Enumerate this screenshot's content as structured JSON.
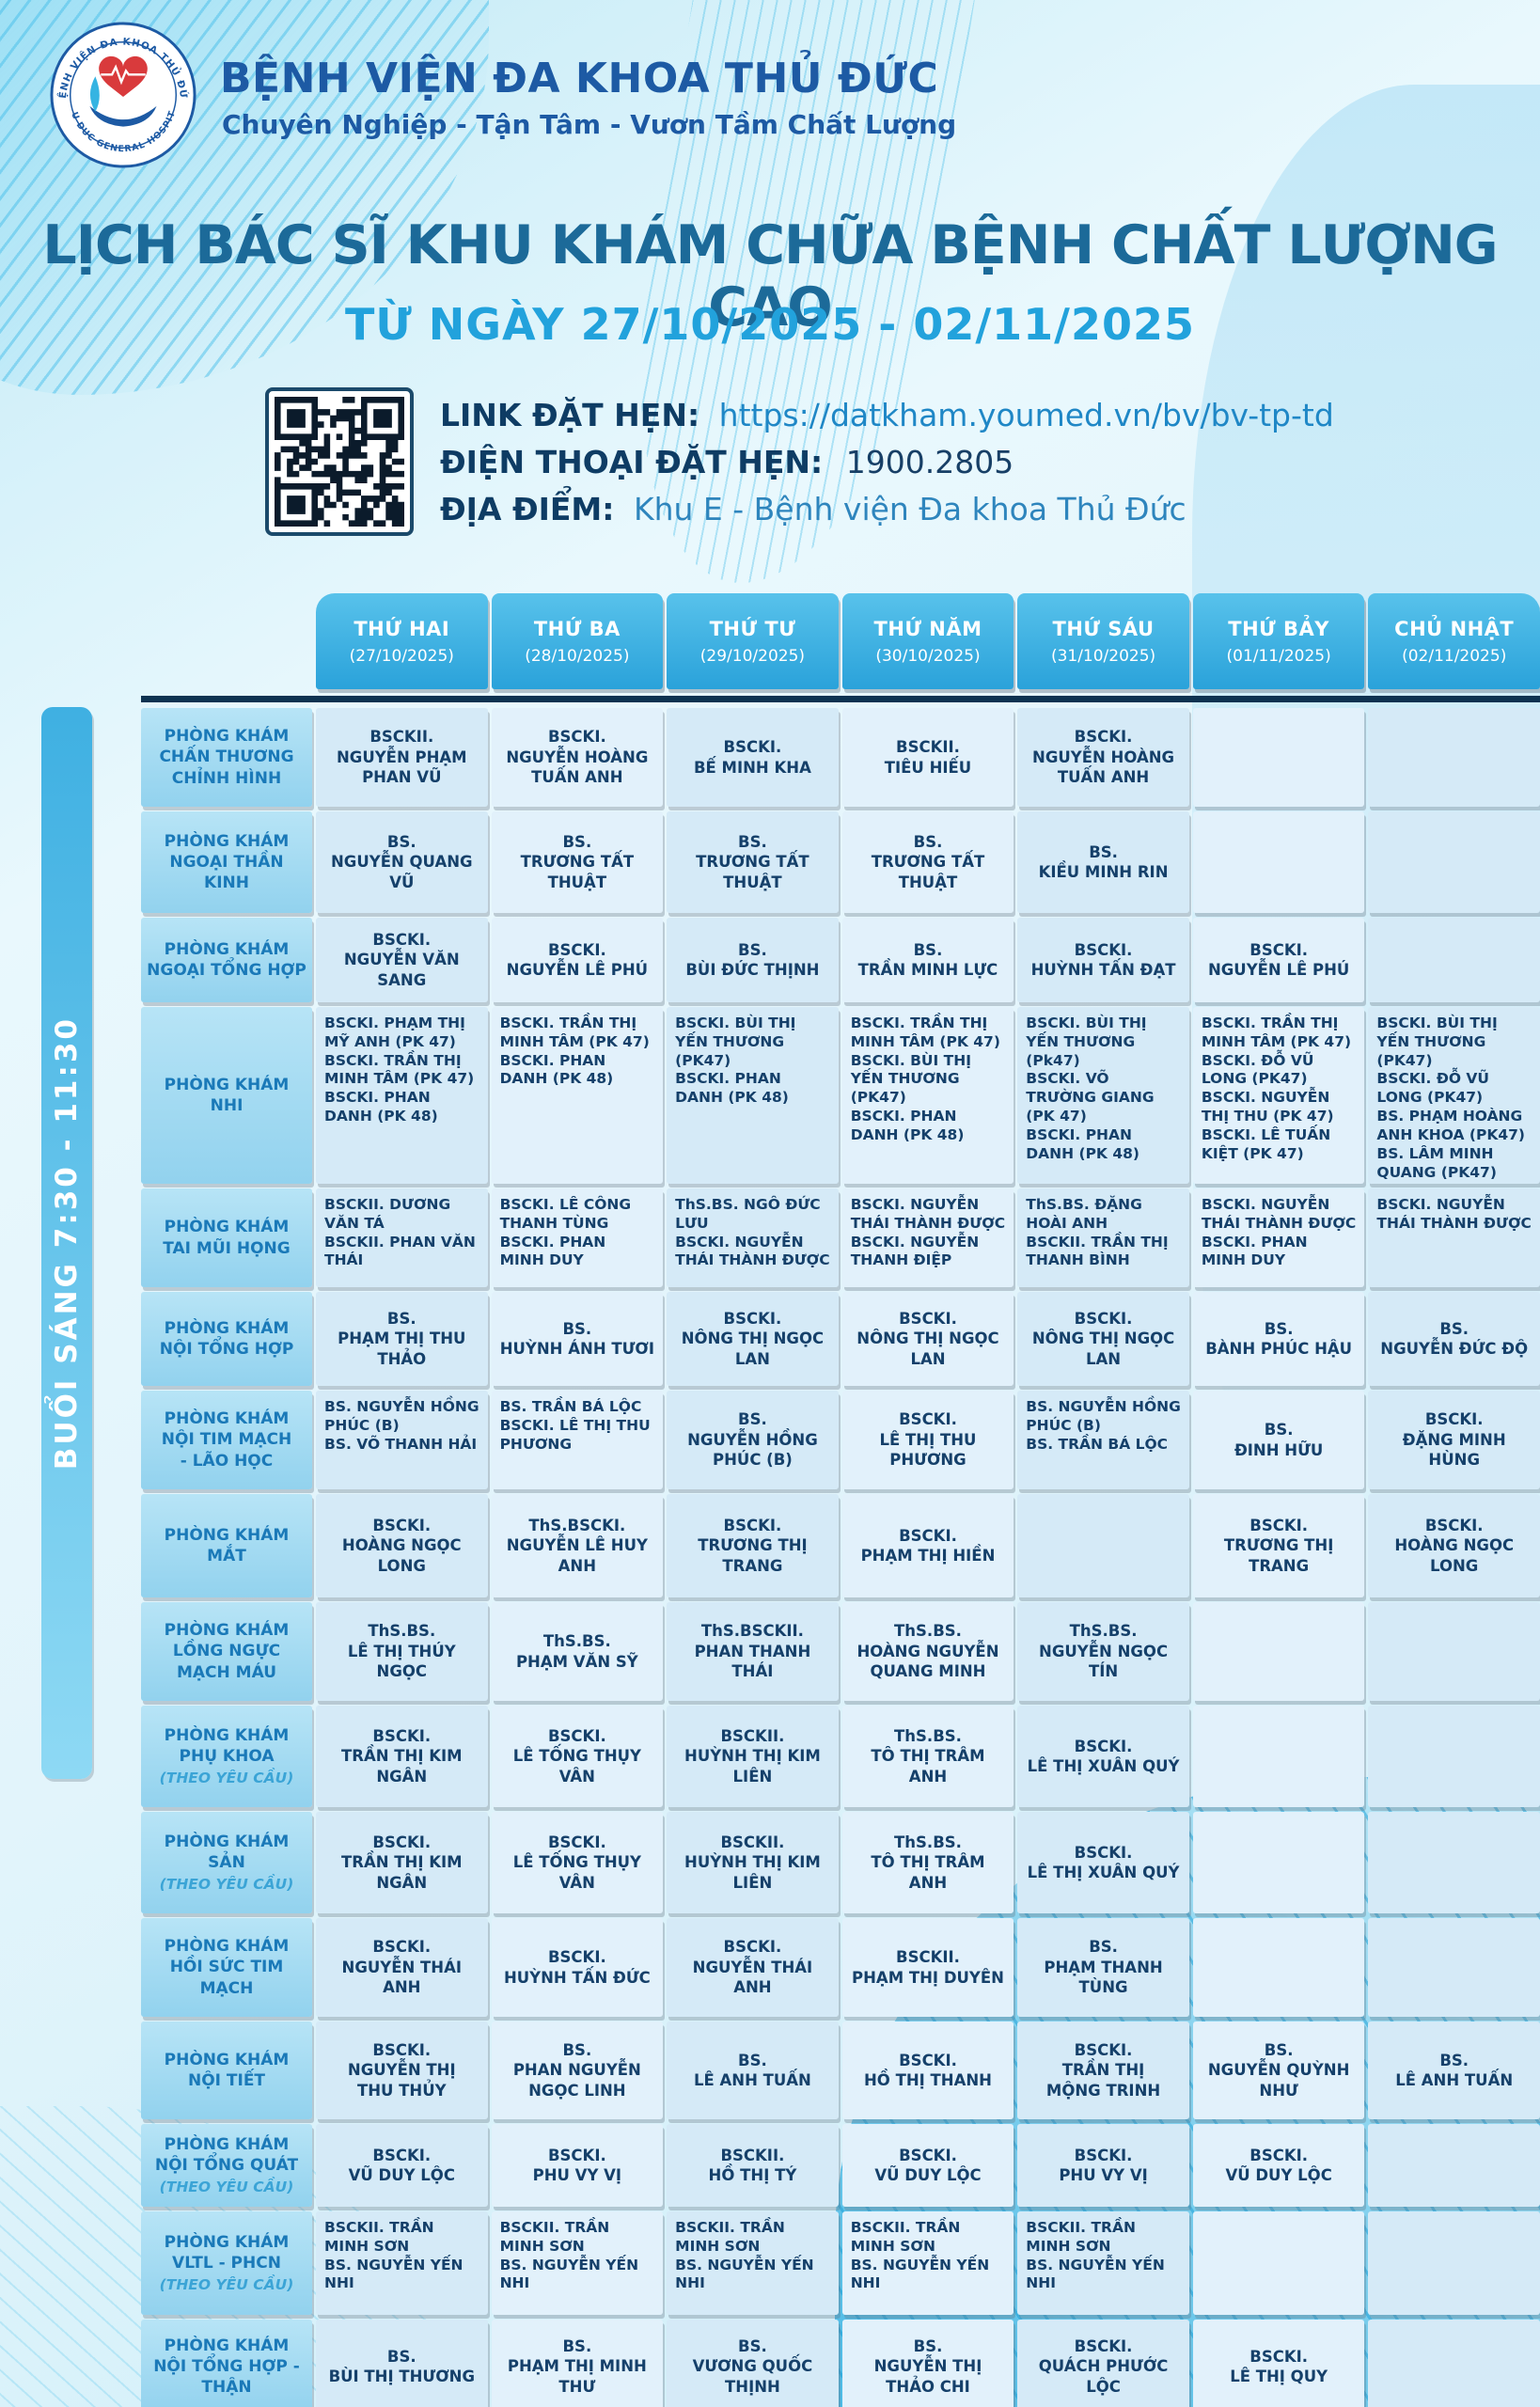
{
  "colors": {
    "navy": "#0d3351",
    "navy_text": "#0e3c64",
    "brand_blue": "#1d5aa4",
    "title_blue": "#1c6a99",
    "accent_cyan": "#22a2dc",
    "room_text": "#1a79b8",
    "cell_text": "#15406a"
  },
  "header": {
    "hospital_name": "BỆNH VIỆN ĐA KHOA THỦ ĐỨC",
    "tagline": "Chuyên Nghiệp - Tận Tâm - Vươn Tầm Chất Lượng",
    "logo_text_top": "BỆNH VIỆN ĐA KHOA THỦ ĐỨC",
    "logo_text_bottom": "THU DUC GENERAL HOSPITAL"
  },
  "title": {
    "line1": "LỊCH BÁC SĨ KHU KHÁM CHỮA BỆNH CHẤT LƯỢNG CAO",
    "line2": "TỪ NGÀY 27/10/2025 - 02/11/2025"
  },
  "booking": {
    "link_label": "LINK ĐẶT HẸN:",
    "link_value": "https://datkham.youmed.vn/bv/bv-tp-td",
    "phone_label": "ĐIỆN THOẠI ĐẶT HẸN:",
    "phone_value": "1900.2805",
    "address_label": "ĐỊA ĐIỂM:",
    "address_value": "Khu E - Bệnh viện Đa khoa Thủ Đức"
  },
  "session_label": "BUỔI SÁNG 7:30 - 11:30",
  "days": [
    {
      "name": "THỨ HAI",
      "date": "(27/10/2025)"
    },
    {
      "name": "THỨ BA",
      "date": "(28/10/2025)"
    },
    {
      "name": "THỨ TƯ",
      "date": "(29/10/2025)"
    },
    {
      "name": "THỨ NĂM",
      "date": "(30/10/2025)"
    },
    {
      "name": "THỨ SÁU",
      "date": "(31/10/2025)"
    },
    {
      "name": "THỨ BẢY",
      "date": "(01/11/2025)"
    },
    {
      "name": "CHỦ NHẬT",
      "date": "(02/11/2025)"
    }
  ],
  "rows": [
    {
      "room": "PHÒNG KHÁM\nCHẤN THƯƠNG\nCHỈNH HÌNH",
      "h": 105,
      "align": "center",
      "cells": [
        "BSCKII.\nNGUYỄN PHẠM\nPHAN VŨ",
        "BSCKI.\nNGUYỄN HOÀNG\nTUẤN ANH",
        "BSCKI.\nBẾ MINH KHA",
        "BSCKII.\nTIÊU HIẾU",
        "BSCKI.\nNGUYỄN HOÀNG\nTUẤN ANH",
        "",
        ""
      ]
    },
    {
      "room": "PHÒNG KHÁM\nNGOẠI THẦN KINH",
      "h": 108,
      "align": "center",
      "cells": [
        "BS.\nNGUYỄN QUANG VŨ",
        "BS.\nTRƯƠNG TẤT THUẬT",
        "BS.\nTRƯƠNG TẤT THUẬT",
        "BS.\nTRƯƠNG TẤT THUẬT",
        "BS.\nKIỀU MINH RIN",
        "",
        ""
      ]
    },
    {
      "room": "PHÒNG KHÁM\nNGOẠI TỔNG HỢP",
      "h": 90,
      "align": "center",
      "cells": [
        "BSCKI.\nNGUYỄN VĂN SANG",
        "BSCKI.\nNGUYỄN LÊ PHÚ",
        "BS.\nBÙI ĐỨC THỊNH",
        "BS.\nTRẦN MINH LỰC",
        "BSCKI.\nHUỲNH TẤN ĐẠT",
        "BSCKI.\nNGUYỄN LÊ PHÚ",
        ""
      ]
    },
    {
      "room": "PHÒNG KHÁM\nNHI",
      "h": 188,
      "align": "left",
      "cells": [
        "BSCKI. PHẠM THỊ MỸ ANH (PK 47)\nBSCKI. TRẦN THỊ MINH TÂM (PK 47)\nBSCKI. PHAN DANH (PK 48)",
        "BSCKI. TRẦN THỊ MINH TÂM (PK 47)\nBSCKI. PHAN DANH (PK 48)",
        "BSCKI. BÙI THỊ YẾN THƯƠNG (PK47)\nBSCKI. PHAN DANH (PK 48)",
        "BSCKI. TRẦN THỊ MINH TÂM (PK 47)\nBSCKI. BÙI THỊ YẾN THƯƠNG (PK47)\nBSCKI. PHAN DANH (PK 48)",
        "BSCKI. BÙI THỊ YẾN THƯƠNG (Pk47)\nBSCKI. VÕ TRƯỜNG GIANG (PK 47)\nBSCKI. PHAN DANH (PK 48)",
        "BSCKI. TRẦN THỊ MINH TÂM (PK 47)\nBSCKI. ĐỖ VŨ LONG (PK47)\nBSCKI. NGUYỄN THỊ THU (PK 47)\nBSCKI. LÊ TUẤN KIỆT (PK 47)",
        "BSCKI. BÙI THỊ YẾN THƯƠNG (PK47)\nBSCKI. ĐỖ VŨ LONG (PK47)\nBS. PHẠM HOÀNG ANH KHOA (PK47)\nBS. LÂM MINH QUANG (PK47)"
      ]
    },
    {
      "room": "PHÒNG KHÁM\nTAI MŨI HỌNG",
      "h": 105,
      "align": "left",
      "cells": [
        "BSCKII. DƯƠNG VĂN TÁ\nBSCKII. PHAN VĂN THÁI",
        "BSCKI. LÊ CÔNG THANH TÙNG\nBSCKI. PHAN MINH DUY",
        "ThS.BS. NGÔ ĐỨC LƯU\nBSCKI. NGUYỄN THÁI THÀNH ĐƯỢC",
        "BSCKI. NGUYỄN THÁI THÀNH ĐƯỢC\nBSCKI. NGUYỄN THANH ĐIỆP",
        "ThS.BS. ĐẶNG HOÀI ANH\nBSCKII. TRẦN THỊ THANH BÌNH",
        "BSCKI. NGUYỄN THÁI THÀNH ĐƯỢC\nBSCKI. PHAN MINH DUY",
        "BSCKI. NGUYỄN THÁI THÀNH ĐƯỢC"
      ]
    },
    {
      "room": "PHÒNG KHÁM\nNỘI TỔNG HỢP",
      "h": 100,
      "align": "center",
      "cells": [
        "BS.\nPHẠM THỊ THU THẢO",
        "BS.\nHUỲNH ÁNH TƯƠI",
        "BSCKI.\nNÔNG THỊ NGỌC LAN",
        "BSCKI.\nNÔNG THỊ NGỌC LAN",
        "BSCKI.\nNÔNG THỊ NGỌC LAN",
        "BS.\nBÀNH PHÚC HẬU",
        "BS.\nNGUYỄN ĐỨC ĐỘ"
      ]
    },
    {
      "room": "PHÒNG KHÁM\nNỘI TIM MẠCH\n- LÃO HỌC",
      "h": 105,
      "align": "center",
      "cells": [
        {
          "text": "BS. NGUYỄN HỒNG\nPHÚC (B)\nBS. VÕ THANH HẢI",
          "align": "left"
        },
        {
          "text": "BS. TRẦN BÁ LỘC\nBSCKI. LÊ THỊ THU\nPHƯƠNG",
          "align": "left"
        },
        "BS.\nNGUYỄN HỒNG\nPHÚC (B)",
        "BSCKI.\nLÊ THỊ THU PHƯƠNG",
        {
          "text": "BS. NGUYỄN HỒNG\nPHÚC (B)\nBS. TRẦN BÁ LỘC",
          "align": "left"
        },
        "BS.\nĐINH HỮU",
        "BSCKI.\nĐẶNG MINH HÙNG"
      ]
    },
    {
      "room": "PHÒNG KHÁM\nMẮT",
      "h": 110,
      "align": "center",
      "cells": [
        "BSCKI.\nHOÀNG NGỌC LONG",
        "ThS.BSCKI.\nNGUYỄN LÊ HUY ANH",
        "BSCKI.\nTRƯƠNG THỊ TRANG",
        "BSCKI.\nPHẠM THỊ HIỀN",
        "",
        "BSCKI.\nTRƯƠNG THỊ TRANG",
        "BSCKI.\nHOÀNG NGỌC LONG"
      ]
    },
    {
      "room": "PHÒNG KHÁM\nLỒNG NGỰC\nMẠCH MÁU",
      "h": 105,
      "align": "center",
      "cells": [
        "ThS.BS.\nLÊ THỊ THÚY NGỌC",
        "ThS.BS.\nPHẠM VĂN SỸ",
        "ThS.BSCKII.\nPHAN THANH THÁI",
        "ThS.BS.\nHOÀNG NGUYỄN\nQUANG MINH",
        "ThS.BS.\nNGUYỄN NGỌC TÍN",
        "",
        ""
      ]
    },
    {
      "room": "PHÒNG KHÁM\nPHỤ KHOA",
      "note": "(THEO YÊU CẦU)",
      "h": 108,
      "align": "center",
      "cells": [
        "BSCKI.\nTRẦN THỊ KIM NGÂN",
        "BSCKI.\nLÊ TỐNG THỤY VÂN",
        "BSCKII.\nHUỲNH THỊ KIM LIÊN",
        "ThS.BS.\nTÔ THỊ TRÂM ANH",
        "BSCKI.\nLÊ THỊ XUÂN QUÝ",
        "",
        ""
      ]
    },
    {
      "room": "PHÒNG KHÁM\nSẢN",
      "note": "(THEO YÊU CẦU)",
      "h": 108,
      "align": "center",
      "cells": [
        "BSCKI.\nTRẦN THỊ KIM NGÂN",
        "BSCKI.\nLÊ TỐNG THỤY VÂN",
        "BSCKII.\nHUỲNH THỊ KIM LIÊN",
        "ThS.BS.\nTÔ THỊ TRÂM ANH",
        "BSCKI.\nLÊ THỊ XUÂN QUÝ",
        "",
        ""
      ]
    },
    {
      "room": "PHÒNG KHÁM\nHỒI SỨC TIM MẠCH",
      "h": 105,
      "align": "center",
      "cells": [
        "BSCKI.\nNGUYỄN THÁI ANH",
        "BSCKI.\nHUỲNH TẤN ĐỨC",
        "BSCKI.\nNGUYỄN THÁI ANH",
        "BSCKII.\nPHẠM THỊ DUYÊN",
        "BS.\nPHẠM THANH TÙNG",
        "",
        ""
      ]
    },
    {
      "room": "PHÒNG KHÁM\nNỘI TIẾT",
      "h": 104,
      "align": "center",
      "cells": [
        "BSCKI.\nNGUYỄN THỊ\nTHU THỦY",
        "BS.\nPHAN NGUYỄN\nNGỌC LINH",
        "BS.\nLÊ ANH TUẤN",
        "BSCKI.\nHỒ THỊ THANH",
        "BSCKI.\nTRẦN THỊ\nMỘNG TRINH",
        "BS.\nNGUYỄN QUỲNH NHƯ",
        "BS.\nLÊ ANH TUẤN"
      ]
    },
    {
      "room": "PHÒNG KHÁM\nNỘI TỔNG QUÁT",
      "note": "(THEO YÊU CẦU)",
      "h": 88,
      "align": "center",
      "cells": [
        "BSCKI.\nVŨ DUY LỘC",
        "BSCKI.\nPHU VY VỊ",
        "BSCKII.\nHỒ THỊ TÝ",
        "BSCKI.\nVŨ DUY LỘC",
        "BSCKI.\nPHU VY VỊ",
        "BSCKI.\nVŨ DUY LỘC",
        ""
      ]
    },
    {
      "room": "PHÒNG KHÁM\nVLTL - PHCN",
      "note": "(THEO YÊU CẦU)",
      "h": 110,
      "align": "left",
      "cells": [
        "BSCKII. TRẦN MINH SƠN\nBS. NGUYỄN YẾN NHI",
        "BSCKII. TRẦN MINH SƠN\nBS. NGUYỄN YẾN NHI",
        "BSCKII. TRẦN MINH SƠN\nBS. NGUYỄN YẾN NHI",
        "BSCKII. TRẦN MINH SƠN\nBS. NGUYỄN YẾN NHI",
        "BSCKII. TRẦN MINH SƠN\nBS. NGUYỄN YẾN NHI",
        "",
        ""
      ]
    },
    {
      "room": "PHÒNG KHÁM\nNỘI TỔNG HỢP - THẬN",
      "h": 100,
      "align": "center",
      "cells": [
        "BS.\nBÙI THỊ THƯƠNG",
        "BS.\nPHẠM THỊ MINH THƯ",
        "BS.\nVƯƠNG QUỐC\nTHỊNH",
        "BS.\nNGUYỄN THỊ\nTHẢO CHI",
        "BSCKI.\nQUÁCH PHƯỚC LỘC",
        "BSCKI.\nLÊ THỊ QUY",
        ""
      ]
    }
  ]
}
